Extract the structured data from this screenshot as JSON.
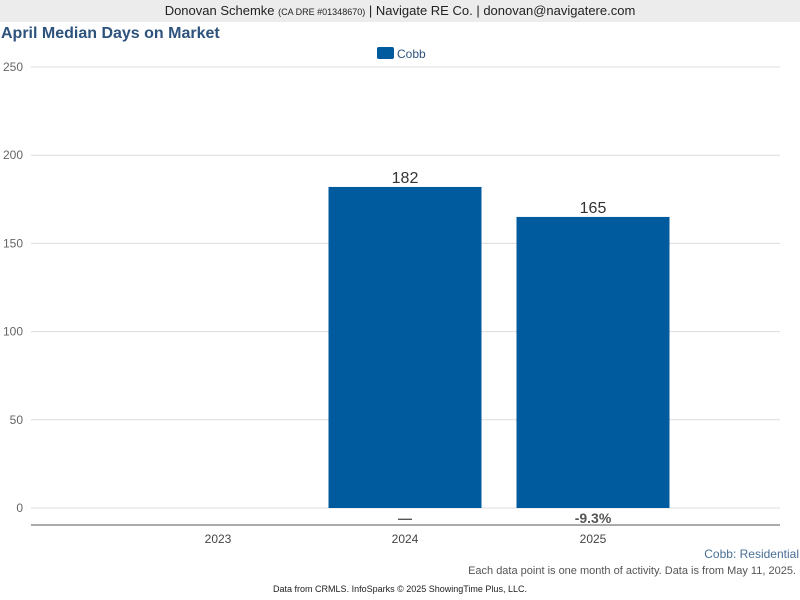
{
  "header": {
    "agent_name": "Donovan Schemke",
    "agent_dre": "(CA DRE #01348670)",
    "separator": "|",
    "company": "Navigate RE Co.",
    "email": "donovan@navigatere.com"
  },
  "chart_data": {
    "type": "bar",
    "title": "April Median Days on Market",
    "categories": [
      "2023",
      "2024",
      "2025"
    ],
    "series": [
      {
        "name": "Cobb",
        "color": "#005a9e",
        "values": [
          null,
          182,
          165
        ]
      }
    ],
    "data_labels": [
      "",
      "182",
      "165"
    ],
    "change_labels": [
      "",
      "—",
      "-9.3%"
    ],
    "ylim": [
      0,
      250
    ],
    "yticks": [
      0,
      50,
      100,
      150,
      200,
      250
    ],
    "grid": true,
    "legend_position": "top-center",
    "xlabel": "",
    "ylabel": ""
  },
  "subset_label": "Cobb: Residential",
  "footnote": "Each data point is one month of activity. Data is from May 11, 2025.",
  "credit": "Data from CRMLS. InfoSparks © 2025 ShowingTime Plus, LLC."
}
